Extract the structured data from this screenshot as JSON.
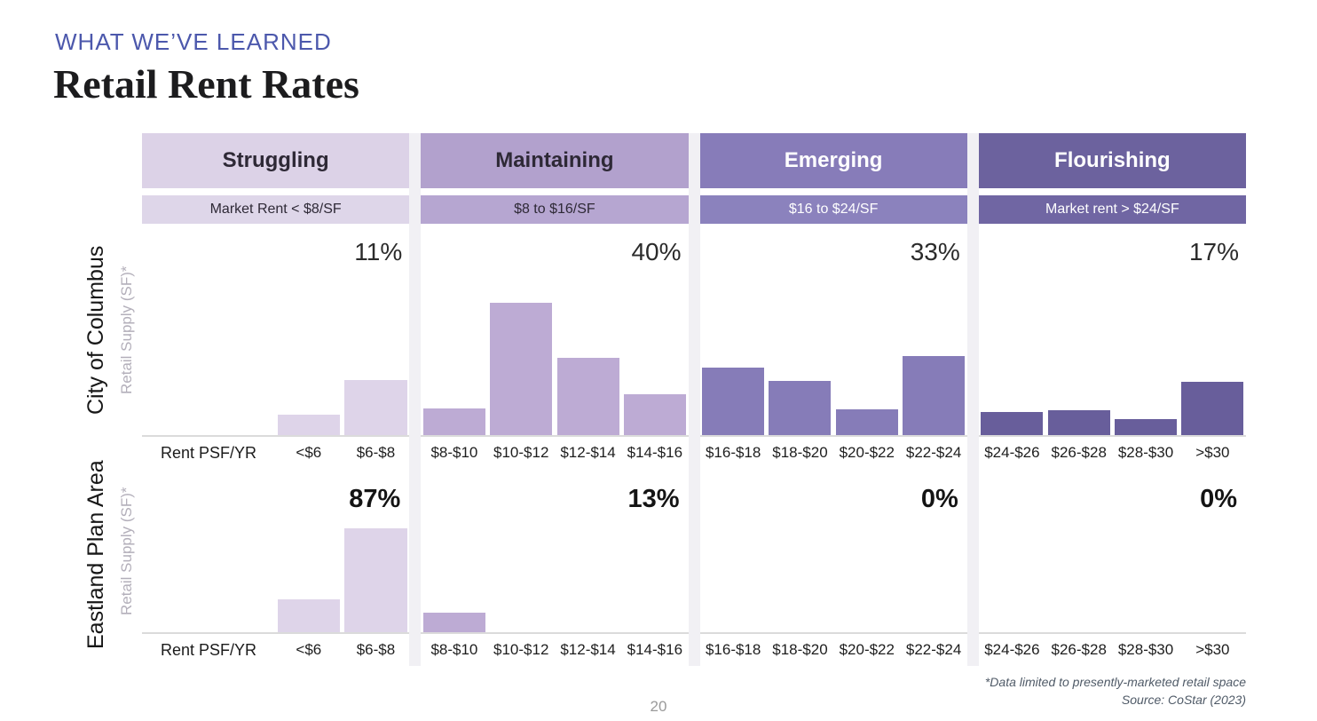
{
  "header": {
    "eyebrow": "WHAT WE’VE LEARNED",
    "title": "Retail Rent Rates"
  },
  "colors": {
    "accent_eyebrow": "#4c58ac",
    "gutter": "#f1f0f4",
    "baseline": "#dbdbdb"
  },
  "categories": [
    {
      "name": "Struggling",
      "range": "Market Rent < $8/SF",
      "bins": [
        "<$6",
        "$6-$8"
      ],
      "colors": {
        "header_bg": "#dcd2e7",
        "range_bg": "#ded6e9",
        "text": "#2e2936",
        "bar": "#ded4e9"
      }
    },
    {
      "name": "Maintaining",
      "range": "$8 to $16/SF",
      "bins": [
        "$8-$10",
        "$10-$12",
        "$12-$14",
        "$14-$16"
      ],
      "colors": {
        "header_bg": "#b2a1cd",
        "range_bg": "#b6a6d1",
        "text": "#2e2936",
        "bar": "#bdabd4"
      }
    },
    {
      "name": "Emerging",
      "range": "$16 to $24/SF",
      "bins": [
        "$16-$18",
        "$18-$20",
        "$20-$22",
        "$22-$24"
      ],
      "colors": {
        "header_bg": "#877cb9",
        "range_bg": "#8b82bd",
        "text": "#ffffff",
        "bar": "#867cb8"
      }
    },
    {
      "name": "Flourishing",
      "range": "Market rent > $24/SF",
      "bins": [
        "$24-$26",
        "$26-$28",
        "$28-$30",
        ">$30"
      ],
      "colors": {
        "header_bg": "#6c629e",
        "range_bg": "#7066a3",
        "text": "#ffffff",
        "bar": "#685e9b"
      }
    }
  ],
  "rows": [
    {
      "area": "City of Columbus",
      "ylabel": "Retail Supply (SF)*",
      "axis_label": "Rent PSF/YR",
      "pct": [
        "11%",
        "40%",
        "33%",
        "17%"
      ]
    },
    {
      "area": "Eastland Plan Area",
      "ylabel": "Retail Supply (SF)*",
      "axis_label": "Rent PSF/YR",
      "pct": [
        "87%",
        "13%",
        "0%",
        "0%"
      ]
    }
  ],
  "chart_data": [
    {
      "type": "bar",
      "title": "City of Columbus",
      "ylabel": "Retail Supply (SF)*",
      "xlabel": "Rent PSF/YR",
      "grid": false,
      "categories": [
        "<$6",
        "$6-$8",
        "$8-$10",
        "$10-$12",
        "$12-$14",
        "$14-$16",
        "$16-$18",
        "$18-$20",
        "$20-$22",
        "$22-$24",
        "$24-$26",
        "$26-$28",
        "$28-$30",
        ">$30"
      ],
      "values_pct_of_total_supply": [
        2.9,
        7.9,
        3.8,
        19.0,
        11.1,
        5.9,
        9.7,
        7.8,
        3.7,
        11.4,
        3.3,
        3.6,
        2.3,
        7.7
      ],
      "group_totals": [
        {
          "group": "Struggling",
          "pct": 11
        },
        {
          "group": "Maintaining",
          "pct": 40
        },
        {
          "group": "Emerging",
          "pct": 33
        },
        {
          "group": "Flourishing",
          "pct": 17
        }
      ]
    },
    {
      "type": "bar",
      "title": "Eastland Plan Area",
      "ylabel": "Retail Supply (SF)*",
      "xlabel": "Rent PSF/YR",
      "grid": false,
      "categories": [
        "<$6",
        "$6-$8",
        "$8-$10",
        "$10-$12",
        "$12-$14",
        "$14-$16",
        "$16-$18",
        "$18-$20",
        "$20-$22",
        "$22-$24",
        "$24-$26",
        "$26-$28",
        "$28-$30",
        ">$30"
      ],
      "values_pct_of_total_supply": [
        21.0,
        66.5,
        12.5,
        0,
        0,
        0,
        0,
        0,
        0,
        0,
        0,
        0,
        0,
        0
      ],
      "group_totals": [
        {
          "group": "Struggling",
          "pct": 87
        },
        {
          "group": "Maintaining",
          "pct": 13
        },
        {
          "group": "Emerging",
          "pct": 0
        },
        {
          "group": "Flourishing",
          "pct": 0
        }
      ]
    }
  ],
  "footer": {
    "footnote1": "*Data limited to presently-marketed retail space",
    "footnote2": "Source: CoStar (2023)",
    "page": "20"
  }
}
